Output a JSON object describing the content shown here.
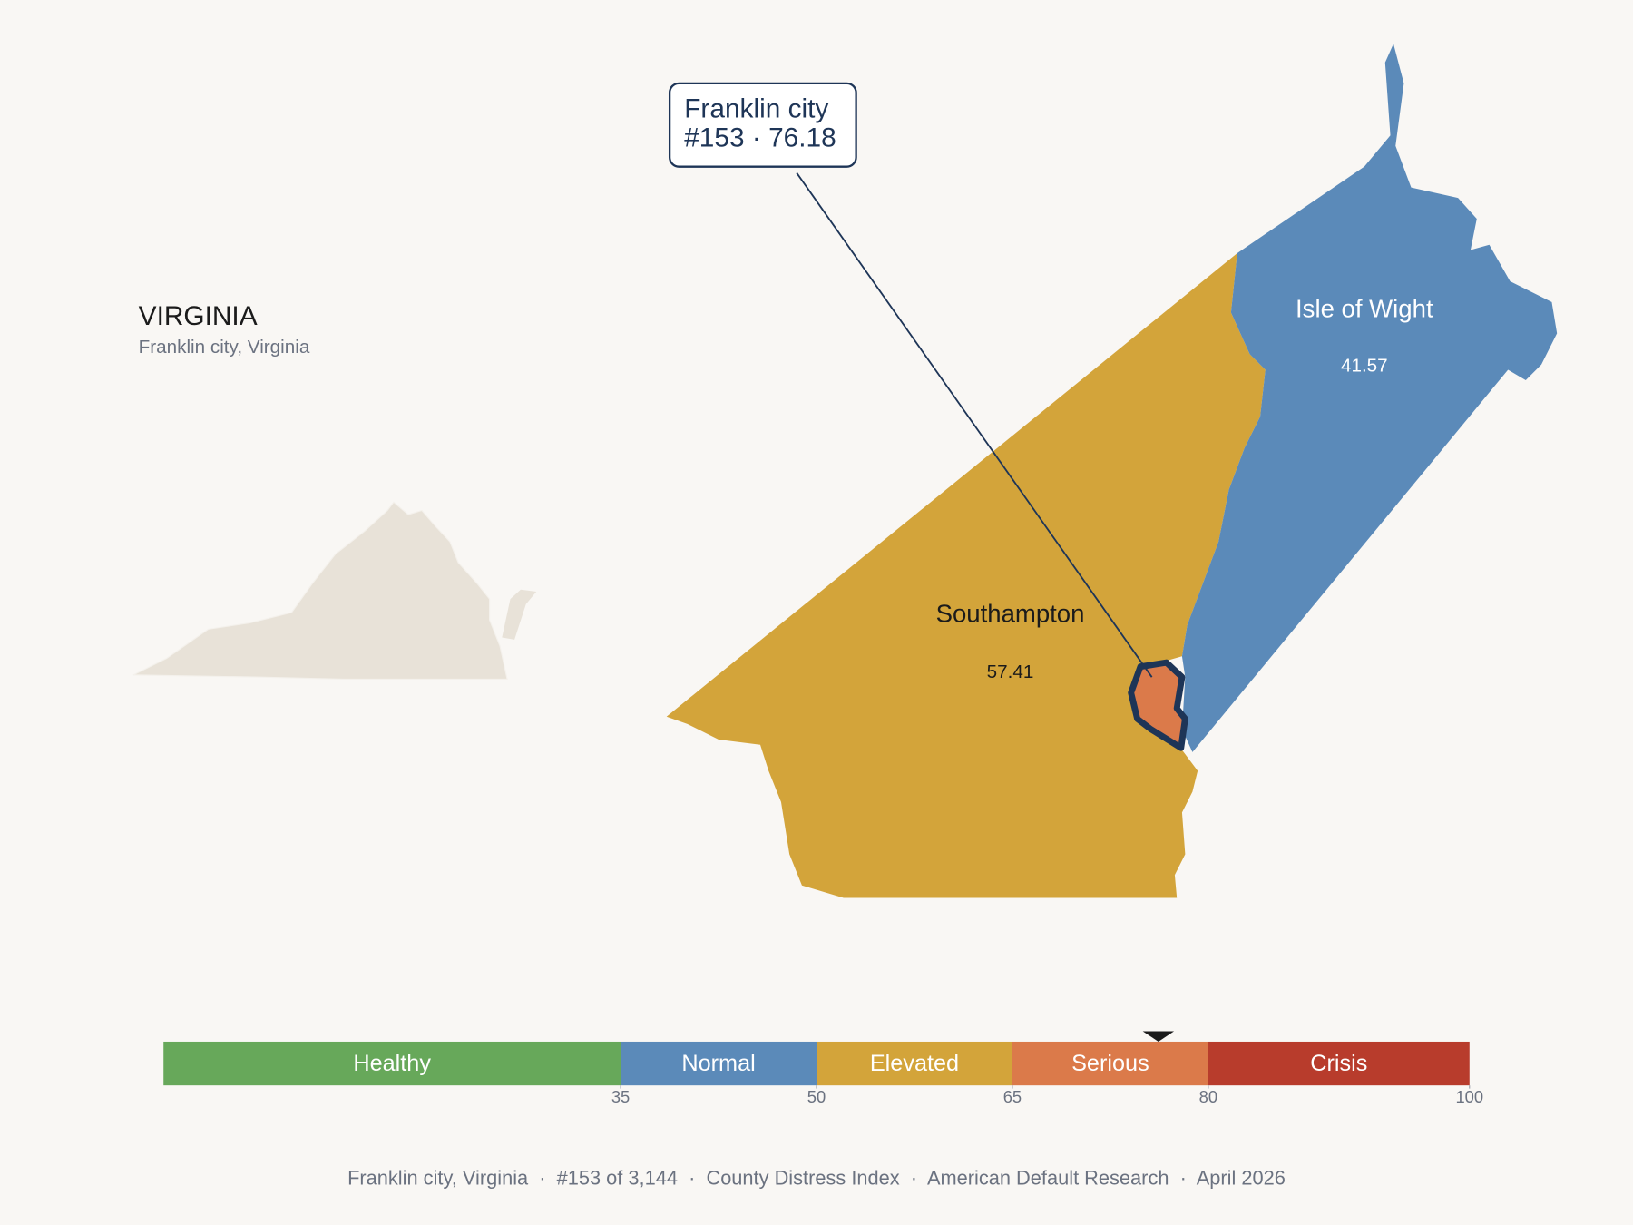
{
  "header": {
    "title": "VIRGINIA",
    "subtitle": "Franklin city, Virginia"
  },
  "callout": {
    "name": "Franklin city",
    "line": "#153 · 76.18"
  },
  "counties": [
    {
      "name": "Southampton",
      "value": 57.41
    },
    {
      "name": "Isle of Wight",
      "value": 41.57
    },
    {
      "name": "Franklin city",
      "value": 76.18
    }
  ],
  "scale": {
    "lim": [
      0,
      100
    ],
    "ticks": [
      35,
      50,
      65,
      80,
      100
    ],
    "marker": 76.18,
    "bands": [
      {
        "label": "Healthy",
        "color": "#67a85a"
      },
      {
        "label": "Normal",
        "color": "#5b8ab9"
      },
      {
        "label": "Elevated",
        "color": "#d3a43a"
      },
      {
        "label": "Serious",
        "color": "#db7a4a"
      },
      {
        "label": "Crisis",
        "color": "#b83c2c"
      }
    ]
  },
  "footer": "Franklin city, Virginia  ·  #153 of 3,144  ·  County Distress Index  ·  American Default Research  ·  April 2026"
}
